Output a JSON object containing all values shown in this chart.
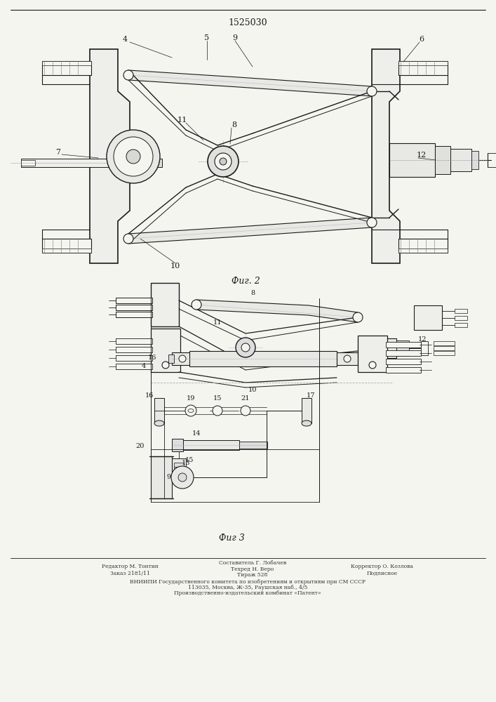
{
  "title": "1525030",
  "fig2_label": "Фиг. 2",
  "fig3_label": "Фиг 3",
  "bg_color": "#f5f5f0",
  "line_color": "#1a1a1a",
  "fig_width": 7.07,
  "fig_height": 10.0
}
